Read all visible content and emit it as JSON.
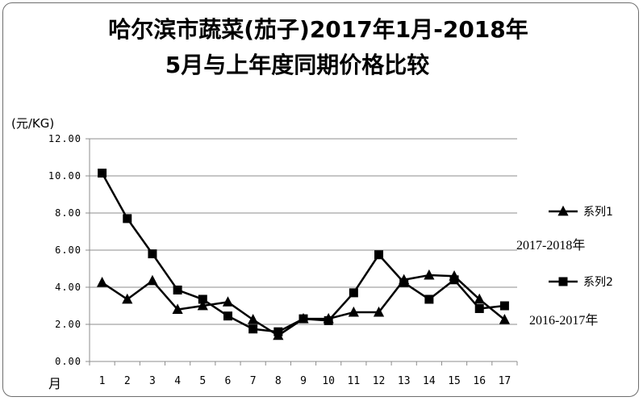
{
  "chart_data": {
    "type": "line",
    "title_line1": "哈尔滨市蔬菜(茄子)2017年1月-2018年",
    "title_line2": "5月与上年度同期价格比较",
    "ylabel": "(元/KG)",
    "xlabel": "月",
    "ylim": [
      0,
      12
    ],
    "y_ticks": [
      "0.00",
      "2.00",
      "4.00",
      "6.00",
      "8.00",
      "10.00",
      "12.00"
    ],
    "categories": [
      "1",
      "2",
      "3",
      "4",
      "5",
      "6",
      "7",
      "8",
      "9",
      "10",
      "11",
      "12",
      "13",
      "14",
      "15",
      "16",
      "17"
    ],
    "grid": "horizontal",
    "legend_position": "right",
    "series": [
      {
        "name": "系列1",
        "note": "2017-2018年",
        "marker": "triangle",
        "values": [
          4.25,
          3.35,
          4.35,
          2.8,
          3.0,
          3.2,
          2.25,
          1.4,
          2.3,
          2.3,
          2.65,
          2.65,
          4.4,
          4.65,
          4.6,
          3.35,
          2.25
        ]
      },
      {
        "name": "系列2",
        "note": "2016-2017年",
        "marker": "square",
        "values": [
          10.15,
          7.7,
          5.8,
          3.85,
          3.35,
          2.45,
          1.75,
          1.6,
          2.3,
          2.2,
          3.7,
          5.75,
          4.25,
          3.35,
          4.4,
          2.85,
          3.0
        ]
      }
    ]
  }
}
